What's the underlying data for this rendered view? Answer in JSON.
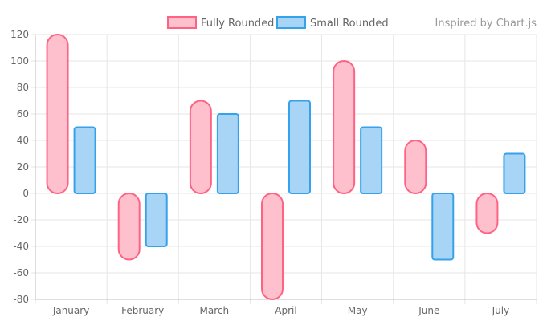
{
  "credit": "Inspired by Chart.js",
  "chart_data": {
    "type": "bar",
    "categories": [
      "January",
      "February",
      "March",
      "April",
      "May",
      "June",
      "July"
    ],
    "series": [
      {
        "name": "Fully Rounded",
        "values": [
          120,
          -50,
          70,
          -80,
          100,
          40,
          -30
        ],
        "color": "#ff6384",
        "fill": "#ffc0cd",
        "corner_style": "fully-rounded"
      },
      {
        "name": "Small Rounded",
        "values": [
          50,
          -40,
          60,
          70,
          50,
          -50,
          30
        ],
        "color": "#36a2eb",
        "fill": "#a8d4f5",
        "corner_style": "small-rounded"
      }
    ],
    "ylim": [
      -80,
      120
    ],
    "yticks": [
      120,
      100,
      80,
      60,
      40,
      20,
      0,
      -20,
      -40,
      -60,
      -80
    ],
    "grid": true,
    "legend": "top-center"
  }
}
